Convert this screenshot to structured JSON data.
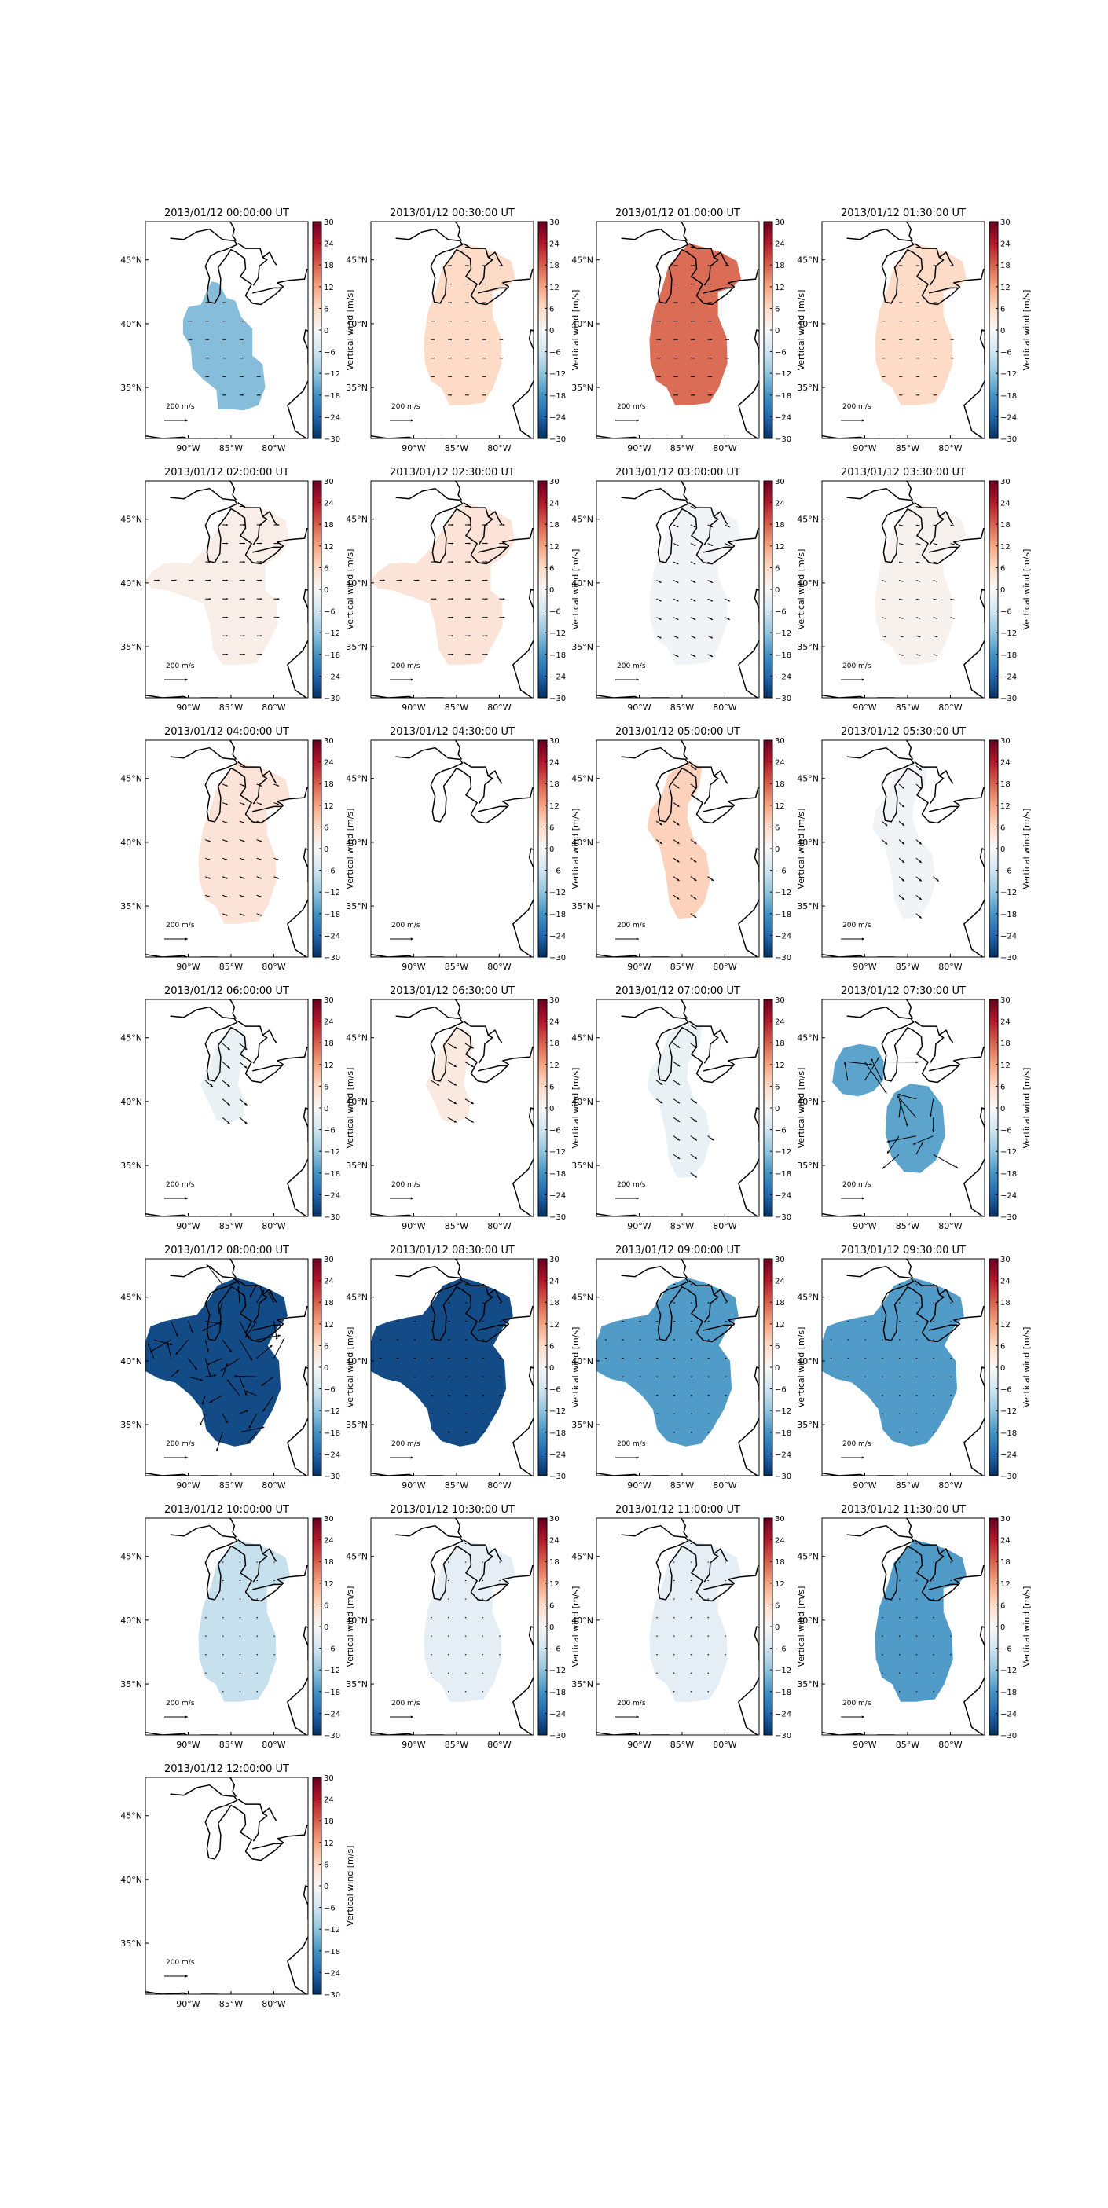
{
  "figure": {
    "colormap": {
      "name": "RdBu_r",
      "neg": "#053061",
      "mid": "#f7f7f7",
      "pos": "#67001f"
    },
    "quiver_key_label": "200 m/s",
    "longitude_tick_labels": [
      "90°W",
      "85°W",
      "80°W"
    ],
    "latitude_tick_labels": [
      "35°N",
      "40°N",
      "45°N"
    ]
  },
  "chart_data": [
    {
      "type": "heatmap",
      "title": "2013/01/12 00:00:00 UT",
      "value": -13,
      "region": "south",
      "arrow_scale": 0.7,
      "arrow_angle": 0,
      "chaos": 0,
      "clabel": "Vertical wind [m/s]",
      "cticks": [
        "30",
        "24",
        "18",
        "12",
        "6",
        "0",
        "−6",
        "−12",
        "−18",
        "−24",
        "−30"
      ],
      "clim": [
        -30,
        30
      ]
    },
    {
      "type": "heatmap",
      "title": "2013/01/12 00:30:00 UT",
      "value": 6,
      "region": "wide",
      "arrow_scale": 0.7,
      "arrow_angle": 0,
      "chaos": 0,
      "clabel": "Vertical wind [m/s]",
      "cticks": [
        "30",
        "24",
        "18",
        "12",
        "6",
        "0",
        "−6",
        "−12",
        "−18",
        "−24",
        "−30"
      ],
      "clim": [
        -30,
        30
      ]
    },
    {
      "type": "heatmap",
      "title": "2013/01/12 01:00:00 UT",
      "value": 17,
      "region": "wide",
      "arrow_scale": 0.8,
      "arrow_angle": 0,
      "chaos": 0,
      "clabel": "Vertical wind [m/s]",
      "cticks": [
        "30",
        "24",
        "18",
        "12",
        "6",
        "0",
        "−6",
        "−12",
        "−18",
        "−24",
        "−30"
      ],
      "clim": [
        -30,
        30
      ]
    },
    {
      "type": "heatmap",
      "title": "2013/01/12 01:30:00 UT",
      "value": 6,
      "region": "wide",
      "arrow_scale": 0.6,
      "arrow_angle": 0,
      "chaos": 0,
      "clabel": "Vertical wind [m/s]",
      "cticks": [
        "30",
        "24",
        "18",
        "12",
        "6",
        "0",
        "−6",
        "−12",
        "−18",
        "−24",
        "−30"
      ],
      "clim": [
        -30,
        30
      ]
    },
    {
      "type": "heatmap",
      "title": "2013/01/12 02:00:00 UT",
      "value": 2,
      "region": "west",
      "arrow_scale": 1.0,
      "arrow_angle": 0,
      "chaos": 0,
      "clabel": "Vertical wind [m/s]",
      "cticks": [
        "30",
        "24",
        "18",
        "12",
        "6",
        "0",
        "−6",
        "−12",
        "−18",
        "−24",
        "−30"
      ],
      "clim": [
        -30,
        30
      ]
    },
    {
      "type": "heatmap",
      "title": "2013/01/12 02:30:00 UT",
      "value": 4,
      "region": "west",
      "arrow_scale": 1.0,
      "arrow_angle": 0,
      "chaos": 0,
      "clabel": "Vertical wind [m/s]",
      "cticks": [
        "30",
        "24",
        "18",
        "12",
        "6",
        "0",
        "−6",
        "−12",
        "−18",
        "−24",
        "−30"
      ],
      "clim": [
        -30,
        30
      ]
    },
    {
      "type": "heatmap",
      "title": "2013/01/12 03:00:00 UT",
      "value": -1,
      "region": "wide",
      "arrow_scale": 1.0,
      "arrow_angle": 25,
      "chaos": 0,
      "clabel": "Vertical wind [m/s]",
      "cticks": [
        "30",
        "24",
        "18",
        "12",
        "6",
        "0",
        "−6",
        "−12",
        "−18",
        "−24",
        "−30"
      ],
      "clim": [
        -30,
        30
      ]
    },
    {
      "type": "heatmap",
      "title": "2013/01/12 03:30:00 UT",
      "value": 1,
      "region": "wide",
      "arrow_scale": 0.8,
      "arrow_angle": 15,
      "chaos": 0,
      "clabel": "Vertical wind [m/s]",
      "cticks": [
        "30",
        "24",
        "18",
        "12",
        "6",
        "0",
        "−6",
        "−12",
        "−18",
        "−24",
        "−30"
      ],
      "clim": [
        -30,
        30
      ]
    },
    {
      "type": "heatmap",
      "title": "2013/01/12 04:00:00 UT",
      "value": 4,
      "region": "wide",
      "arrow_scale": 1.0,
      "arrow_angle": 20,
      "chaos": 0,
      "clabel": "Vertical wind [m/s]",
      "cticks": [
        "30",
        "24",
        "18",
        "12",
        "6",
        "0",
        "−6",
        "−12",
        "−18",
        "−24",
        "−30"
      ],
      "clim": [
        -30,
        30
      ]
    },
    {
      "type": "heatmap",
      "title": "2013/01/12 04:30:00 UT",
      "value": null,
      "region": "none",
      "arrow_scale": 0,
      "arrow_angle": 0,
      "chaos": 0,
      "clabel": "Vertical wind [m/s]",
      "cticks": [
        "30",
        "24",
        "18",
        "12",
        "6",
        "0",
        "−6",
        "−12",
        "−18",
        "−24",
        "−30"
      ],
      "clim": [
        -30,
        30
      ]
    },
    {
      "type": "heatmap",
      "title": "2013/01/12 05:00:00 UT",
      "value": 7,
      "region": "narrow",
      "arrow_scale": 1.3,
      "arrow_angle": 35,
      "chaos": 0,
      "clabel": "Vertical wind [m/s]",
      "cticks": [
        "30",
        "24",
        "18",
        "12",
        "6",
        "0",
        "−6",
        "−12",
        "−18",
        "−24",
        "−30"
      ],
      "clim": [
        -30,
        30
      ]
    },
    {
      "type": "heatmap",
      "title": "2013/01/12 05:30:00 UT",
      "value": -1,
      "region": "narrow",
      "arrow_scale": 1.3,
      "arrow_angle": 40,
      "chaos": 0,
      "clabel": "Vertical wind [m/s]",
      "cticks": [
        "30",
        "24",
        "18",
        "12",
        "6",
        "0",
        "−6",
        "−12",
        "−18",
        "−24",
        "−30"
      ],
      "clim": [
        -30,
        30
      ]
    },
    {
      "type": "heatmap",
      "title": "2013/01/12 06:00:00 UT",
      "value": -2,
      "region": "small",
      "arrow_scale": 1.8,
      "arrow_angle": 40,
      "chaos": 0,
      "clabel": "Vertical wind [m/s]",
      "cticks": [
        "30",
        "24",
        "18",
        "12",
        "6",
        "0",
        "−6",
        "−12",
        "−18",
        "−24",
        "−30"
      ],
      "clim": [
        -30,
        30
      ]
    },
    {
      "type": "heatmap",
      "title": "2013/01/12 06:30:00 UT",
      "value": 3,
      "region": "small",
      "arrow_scale": 1.8,
      "arrow_angle": 30,
      "chaos": 0,
      "clabel": "Vertical wind [m/s]",
      "cticks": [
        "30",
        "24",
        "18",
        "12",
        "6",
        "0",
        "−6",
        "−12",
        "−18",
        "−24",
        "−30"
      ],
      "clim": [
        -30,
        30
      ]
    },
    {
      "type": "heatmap",
      "title": "2013/01/12 07:00:00 UT",
      "value": -2,
      "region": "narrow",
      "arrow_scale": 1.4,
      "arrow_angle": 35,
      "chaos": 0,
      "clabel": "Vertical wind [m/s]",
      "cticks": [
        "30",
        "24",
        "18",
        "12",
        "6",
        "0",
        "−6",
        "−12",
        "−18",
        "−24",
        "−30"
      ],
      "clim": [
        -30,
        30
      ]
    },
    {
      "type": "heatmap",
      "title": "2013/01/12 07:30:00 UT",
      "value": -16,
      "region": "blobs",
      "arrow_scale": 3.5,
      "arrow_angle": 0,
      "chaos": 1,
      "clabel": "Vertical wind [m/s]",
      "cticks": [
        "30",
        "24",
        "18",
        "12",
        "6",
        "0",
        "−6",
        "−12",
        "−18",
        "−24",
        "−30"
      ],
      "clim": [
        -30,
        30
      ]
    },
    {
      "type": "heatmap",
      "title": "2013/01/12 08:00:00 UT",
      "value": -27,
      "region": "wide2",
      "arrow_scale": 2.2,
      "arrow_angle": 0,
      "chaos": 1,
      "clabel": "Vertical wind [m/s]",
      "cticks": [
        "30",
        "24",
        "18",
        "12",
        "6",
        "0",
        "−6",
        "−12",
        "−18",
        "−24",
        "−30"
      ],
      "clim": [
        -30,
        30
      ]
    },
    {
      "type": "heatmap",
      "title": "2013/01/12 08:30:00 UT",
      "value": -27,
      "region": "wide2",
      "arrow_scale": 0.4,
      "arrow_angle": 0,
      "chaos": 0,
      "clabel": "Vertical wind [m/s]",
      "cticks": [
        "30",
        "24",
        "18",
        "12",
        "6",
        "0",
        "−6",
        "−12",
        "−18",
        "−24",
        "−30"
      ],
      "clim": [
        -30,
        30
      ]
    },
    {
      "type": "heatmap",
      "title": "2013/01/12 09:00:00 UT",
      "value": -17,
      "region": "wide2",
      "arrow_scale": 0.3,
      "arrow_angle": 0,
      "chaos": 0,
      "clabel": "Vertical wind [m/s]",
      "cticks": [
        "30",
        "24",
        "18",
        "12",
        "6",
        "0",
        "−6",
        "−12",
        "−18",
        "−24",
        "−30"
      ],
      "clim": [
        -30,
        30
      ]
    },
    {
      "type": "heatmap",
      "title": "2013/01/12 09:30:00 UT",
      "value": -17,
      "region": "wide2",
      "arrow_scale": 0.2,
      "arrow_angle": 0,
      "chaos": 0,
      "clabel": "Vertical wind [m/s]",
      "cticks": [
        "30",
        "24",
        "18",
        "12",
        "6",
        "0",
        "−6",
        "−12",
        "−18",
        "−24",
        "−30"
      ],
      "clim": [
        -30,
        30
      ]
    },
    {
      "type": "heatmap",
      "title": "2013/01/12 10:00:00 UT",
      "value": -7,
      "region": "wide",
      "arrow_scale": 0.2,
      "arrow_angle": 0,
      "chaos": 0,
      "clabel": "Vertical wind [m/s]",
      "cticks": [
        "30",
        "24",
        "18",
        "12",
        "6",
        "0",
        "−6",
        "−12",
        "−18",
        "−24",
        "−30"
      ],
      "clim": [
        -30,
        30
      ]
    },
    {
      "type": "heatmap",
      "title": "2013/01/12 10:30:00 UT",
      "value": -3,
      "region": "wide",
      "arrow_scale": 0.2,
      "arrow_angle": 0,
      "chaos": 0,
      "clabel": "Vertical wind [m/s]",
      "cticks": [
        "30",
        "24",
        "18",
        "12",
        "6",
        "0",
        "−6",
        "−12",
        "−18",
        "−24",
        "−30"
      ],
      "clim": [
        -30,
        30
      ]
    },
    {
      "type": "heatmap",
      "title": "2013/01/12 11:00:00 UT",
      "value": -3,
      "region": "wide",
      "arrow_scale": 0.2,
      "arrow_angle": 0,
      "chaos": 0,
      "clabel": "Vertical wind [m/s]",
      "cticks": [
        "30",
        "24",
        "18",
        "12",
        "6",
        "0",
        "−6",
        "−12",
        "−18",
        "−24",
        "−30"
      ],
      "clim": [
        -30,
        30
      ]
    },
    {
      "type": "heatmap",
      "title": "2013/01/12 11:30:00 UT",
      "value": -17,
      "region": "wide",
      "arrow_scale": 0.2,
      "arrow_angle": 0,
      "chaos": 0,
      "clabel": "Vertical wind [m/s]",
      "cticks": [
        "30",
        "24",
        "18",
        "12",
        "6",
        "0",
        "−6",
        "−12",
        "−18",
        "−24",
        "−30"
      ],
      "clim": [
        -30,
        30
      ]
    },
    {
      "type": "heatmap",
      "title": "2013/01/12 12:00:00 UT",
      "value": null,
      "region": "none",
      "arrow_scale": 0,
      "arrow_angle": 0,
      "chaos": 0,
      "clabel": "Vertical wind [m/s]",
      "cticks": [
        "30",
        "24",
        "18",
        "12",
        "6",
        "0",
        "−6",
        "−12",
        "−18",
        "−24",
        "−30"
      ],
      "clim": [
        -30,
        30
      ]
    }
  ]
}
